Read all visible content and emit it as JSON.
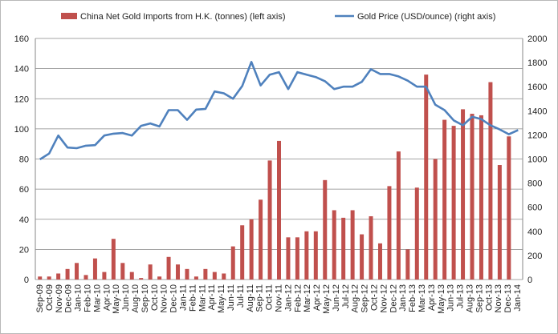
{
  "chart_data": {
    "type": "bar",
    "legend_position": "top",
    "grid": "horizontal",
    "x": [
      "Sep-09",
      "Oct-09",
      "Nov-09",
      "Dec-09",
      "Jan-10",
      "Feb-10",
      "Mar-10",
      "Apr-10",
      "May-10",
      "Jun-10",
      "Jul-10",
      "Aug-10",
      "Sep-10",
      "Oct-10",
      "Nov-10",
      "Dec-10",
      "Jan-11",
      "Feb-11",
      "Mar-11",
      "Apr-11",
      "May-11",
      "Jun-11",
      "Jul-11",
      "Aug-11",
      "Sep-11",
      "Oct-11",
      "Nov-11",
      "Dec-11",
      "Jan-12",
      "Feb-12",
      "Mar-12",
      "Apr-12",
      "May-12",
      "Jun-12",
      "Jul-12",
      "Aug-12",
      "Sep-12",
      "Oct-12",
      "Nov-12",
      "Dec-12",
      "Jan-13",
      "Feb-13",
      "Mar-13",
      "Apr-13",
      "May-13",
      "Jun-13",
      "Jul-13",
      "Aug-13",
      "Sep-13",
      "Oct-13",
      "Nov-13",
      "Dec-13",
      "Jan-14"
    ],
    "x_tick_labels": [
      "Sep-09",
      "Oct-09",
      "Nov-09",
      "Dec-09",
      "Jan-10",
      "Feb-10",
      "Mar-10",
      "Apr-10",
      "May-10",
      "Jun-10",
      "Aug-10",
      "Sep-10",
      "Oct-10",
      "Nov-10",
      "Dec-10",
      "Jan-11",
      "Feb-11",
      "Mar-11",
      "Apr-11",
      "May-11",
      "Jun-11",
      "Jul-11",
      "Aug-11",
      "Sep-11",
      "Oct-11",
      "Nov-11",
      "Jan-12",
      "Feb-12",
      "Mar-12",
      "Apr-12",
      "May-12",
      "Jun-12",
      "Jul-12",
      "Aug-12",
      "Sep-12",
      "Oct-12",
      "Nov-12",
      "Dec-12",
      "Jan-13",
      "Feb-13",
      "Mar-13",
      "Apr-13",
      "May-13",
      "Jun-13",
      "Jul-13",
      "Aug-13",
      "Sep-13",
      "Oct-13",
      "Nov-13",
      "Dec-13",
      "Jan-14"
    ],
    "series": [
      {
        "name": "China Net Gold Imports from H.K. (tonnes) (left axis)",
        "type": "bar",
        "axis": "left",
        "color": "#c0504d",
        "values": [
          2,
          2,
          4,
          7,
          11,
          3,
          14,
          5,
          27,
          11,
          5,
          1,
          10,
          2,
          15,
          10,
          7,
          2,
          7,
          5,
          4,
          22,
          36,
          40,
          53,
          79,
          92,
          28,
          28,
          32,
          32,
          66,
          46,
          41,
          46,
          30,
          42,
          24,
          62,
          85,
          20,
          61,
          136,
          80,
          106,
          102,
          113,
          110,
          109,
          131,
          76,
          95,
          null
        ]
      },
      {
        "name": "Gold Price (USD/ounce) (right axis)",
        "type": "line",
        "axis": "right",
        "color": "#4f81bd",
        "values": [
          997,
          1045,
          1195,
          1095,
          1090,
          1110,
          1115,
          1195,
          1210,
          1215,
          1195,
          1275,
          1295,
          1270,
          1405,
          1405,
          1325,
          1410,
          1415,
          1560,
          1545,
          1500,
          1605,
          1805,
          1610,
          1700,
          1720,
          1580,
          1720,
          1700,
          1680,
          1645,
          1580,
          1600,
          1600,
          1640,
          1745,
          1705,
          1705,
          1685,
          1650,
          1600,
          1600,
          1450,
          1405,
          1320,
          1280,
          1350,
          1330,
          1280,
          1245,
          1205,
          1240
        ]
      }
    ],
    "ylim_left": [
      0,
      160
    ],
    "yticks_left": [
      0,
      20,
      40,
      60,
      80,
      100,
      120,
      140,
      160
    ],
    "ylim_right": [
      0,
      2000
    ],
    "yticks_right": [
      0,
      200,
      400,
      600,
      800,
      1000,
      1200,
      1400,
      1600,
      1800,
      2000
    ]
  }
}
